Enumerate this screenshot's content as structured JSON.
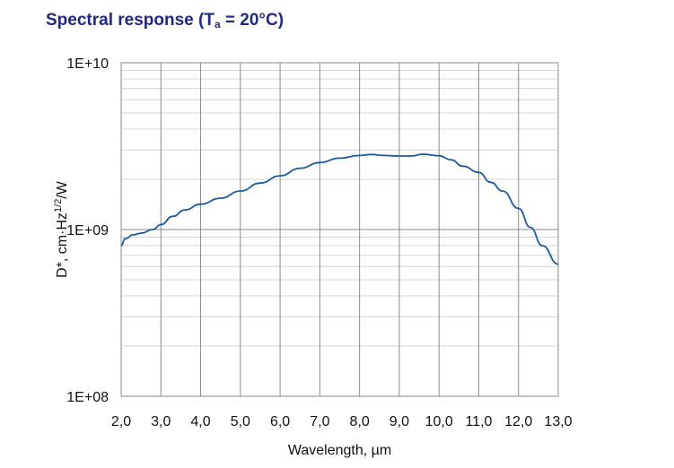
{
  "chart_data": {
    "type": "line",
    "title": {
      "main": "Spectral response (T",
      "sub": "a",
      "rest": " = 20°C)"
    },
    "xlabel": "Wavelength, µm",
    "ylabel": {
      "pre": "D*, cm·Hz",
      "sup": "1/2",
      "post": "/W"
    },
    "xlim": [
      2.0,
      13.0
    ],
    "ylim": [
      100000000,
      10000000000
    ],
    "y_scale": "log",
    "grid": true,
    "x_ticks": [
      2,
      3,
      4,
      5,
      6,
      7,
      8,
      9,
      10,
      11,
      12,
      13
    ],
    "x_tick_labels": [
      "2,0",
      "3,0",
      "4,0",
      "5,0",
      "6,0",
      "7,0",
      "8,0",
      "9,0",
      "10,0",
      "11,0",
      "12,0",
      "13,0"
    ],
    "y_ticks": [
      100000000,
      1000000000,
      10000000000
    ],
    "y_tick_labels": [
      "1E+08",
      "1E+09",
      "1E+10"
    ],
    "line_color": "#1b5aa0",
    "series": [
      {
        "x": [
          2.0,
          2.1,
          2.3,
          2.5,
          2.8,
          3.0,
          3.3,
          3.6,
          4.0,
          4.5,
          5.0,
          5.5,
          6.0,
          6.5,
          7.0,
          7.5,
          8.0,
          8.3,
          8.6,
          9.0,
          9.3,
          9.6,
          10.0,
          10.3,
          10.6,
          11.0,
          11.3,
          11.6,
          12.0,
          12.3,
          12.6,
          13.0
        ],
        "y": [
          800000000,
          880000000,
          930000000,
          950000000,
          1000000000,
          1070000000,
          1200000000,
          1310000000,
          1420000000,
          1540000000,
          1700000000,
          1900000000,
          2100000000,
          2330000000,
          2520000000,
          2680000000,
          2780000000,
          2820000000,
          2780000000,
          2760000000,
          2760000000,
          2830000000,
          2770000000,
          2620000000,
          2400000000,
          2200000000,
          1920000000,
          1700000000,
          1340000000,
          1030000000,
          800000000,
          620000000
        ]
      }
    ]
  }
}
